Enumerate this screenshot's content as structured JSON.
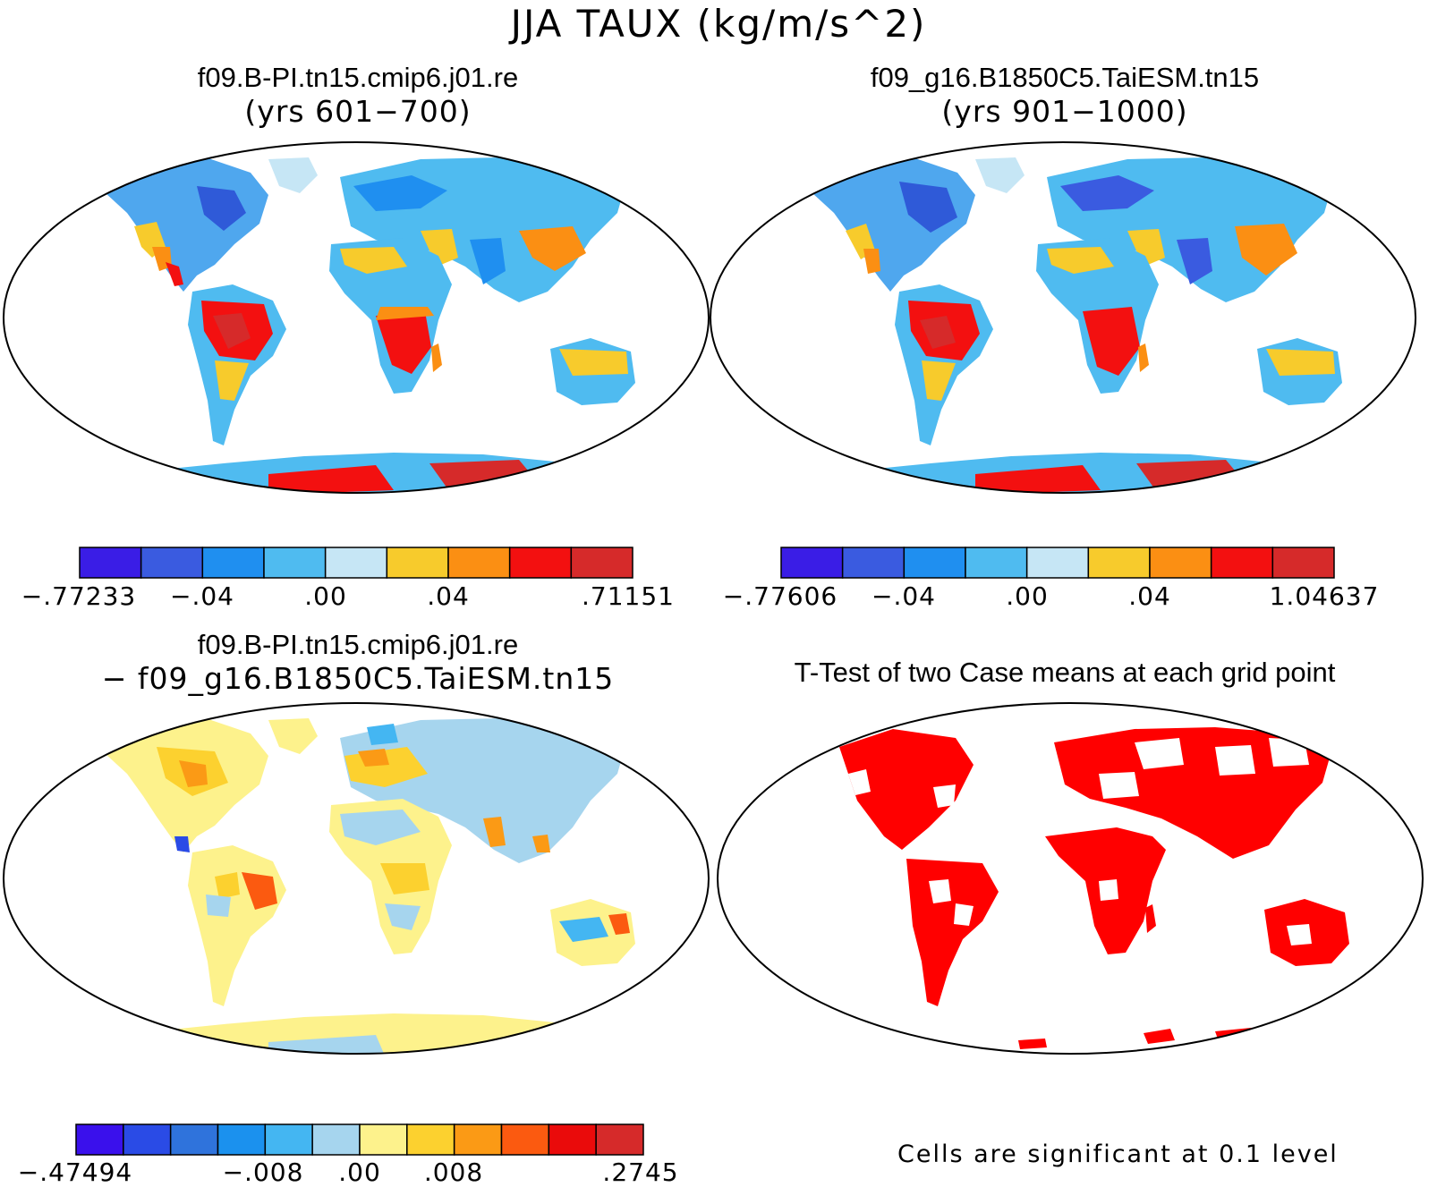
{
  "figure_title": "JJA TAUX (kg/m/s^2)",
  "panels": [
    {
      "id": "case1",
      "title_line1": "f09.B-PI.tn15.cmip6.j01.re",
      "title_line2": "(yrs 601−700)",
      "colorbar": {
        "colors": [
          "#3a1de6",
          "#3a5be0",
          "#1f8ff0",
          "#4fbbf0",
          "#c6e6f5",
          "#f7cb2c",
          "#fb8f13",
          "#f31010",
          "#d62a2a"
        ],
        "labels": [
          "−.77233",
          "−.04",
          ".00",
          ".04",
          ".71151"
        ]
      }
    },
    {
      "id": "case2",
      "title_line1": "f09_g16.B1850C5.TaiESM.tn15",
      "title_line2": "(yrs 901−1000)",
      "colorbar": {
        "colors": [
          "#3a1de6",
          "#3a5be0",
          "#1f8ff0",
          "#4fbbf0",
          "#c6e6f5",
          "#f7cb2c",
          "#fb8f13",
          "#f31010",
          "#d62a2a"
        ],
        "labels": [
          "−.77606",
          "−.04",
          ".00",
          ".04",
          "1.04637"
        ]
      }
    },
    {
      "id": "difference",
      "title_line1": "f09.B-PI.tn15.cmip6.j01.re",
      "title_line2": "− f09_g16.B1850C5.TaiESM.tn15",
      "colorbar": {
        "colors": [
          "#3a10ec",
          "#2a4be6",
          "#2f73dc",
          "#1b91ee",
          "#44b6f2",
          "#a6d5ee",
          "#fdf28c",
          "#fcd12f",
          "#fb9a15",
          "#fb5a10",
          "#ea0b0b",
          "#d62a2a"
        ],
        "labels": [
          "−.47494",
          "−.008",
          ".00",
          ".008",
          ".2745"
        ]
      }
    },
    {
      "id": "ttest",
      "title_line1": "T-Test of two Case means at each grid point",
      "note": "Cells are significant at 0.1 level",
      "significance_color": "#ff0000"
    }
  ]
}
